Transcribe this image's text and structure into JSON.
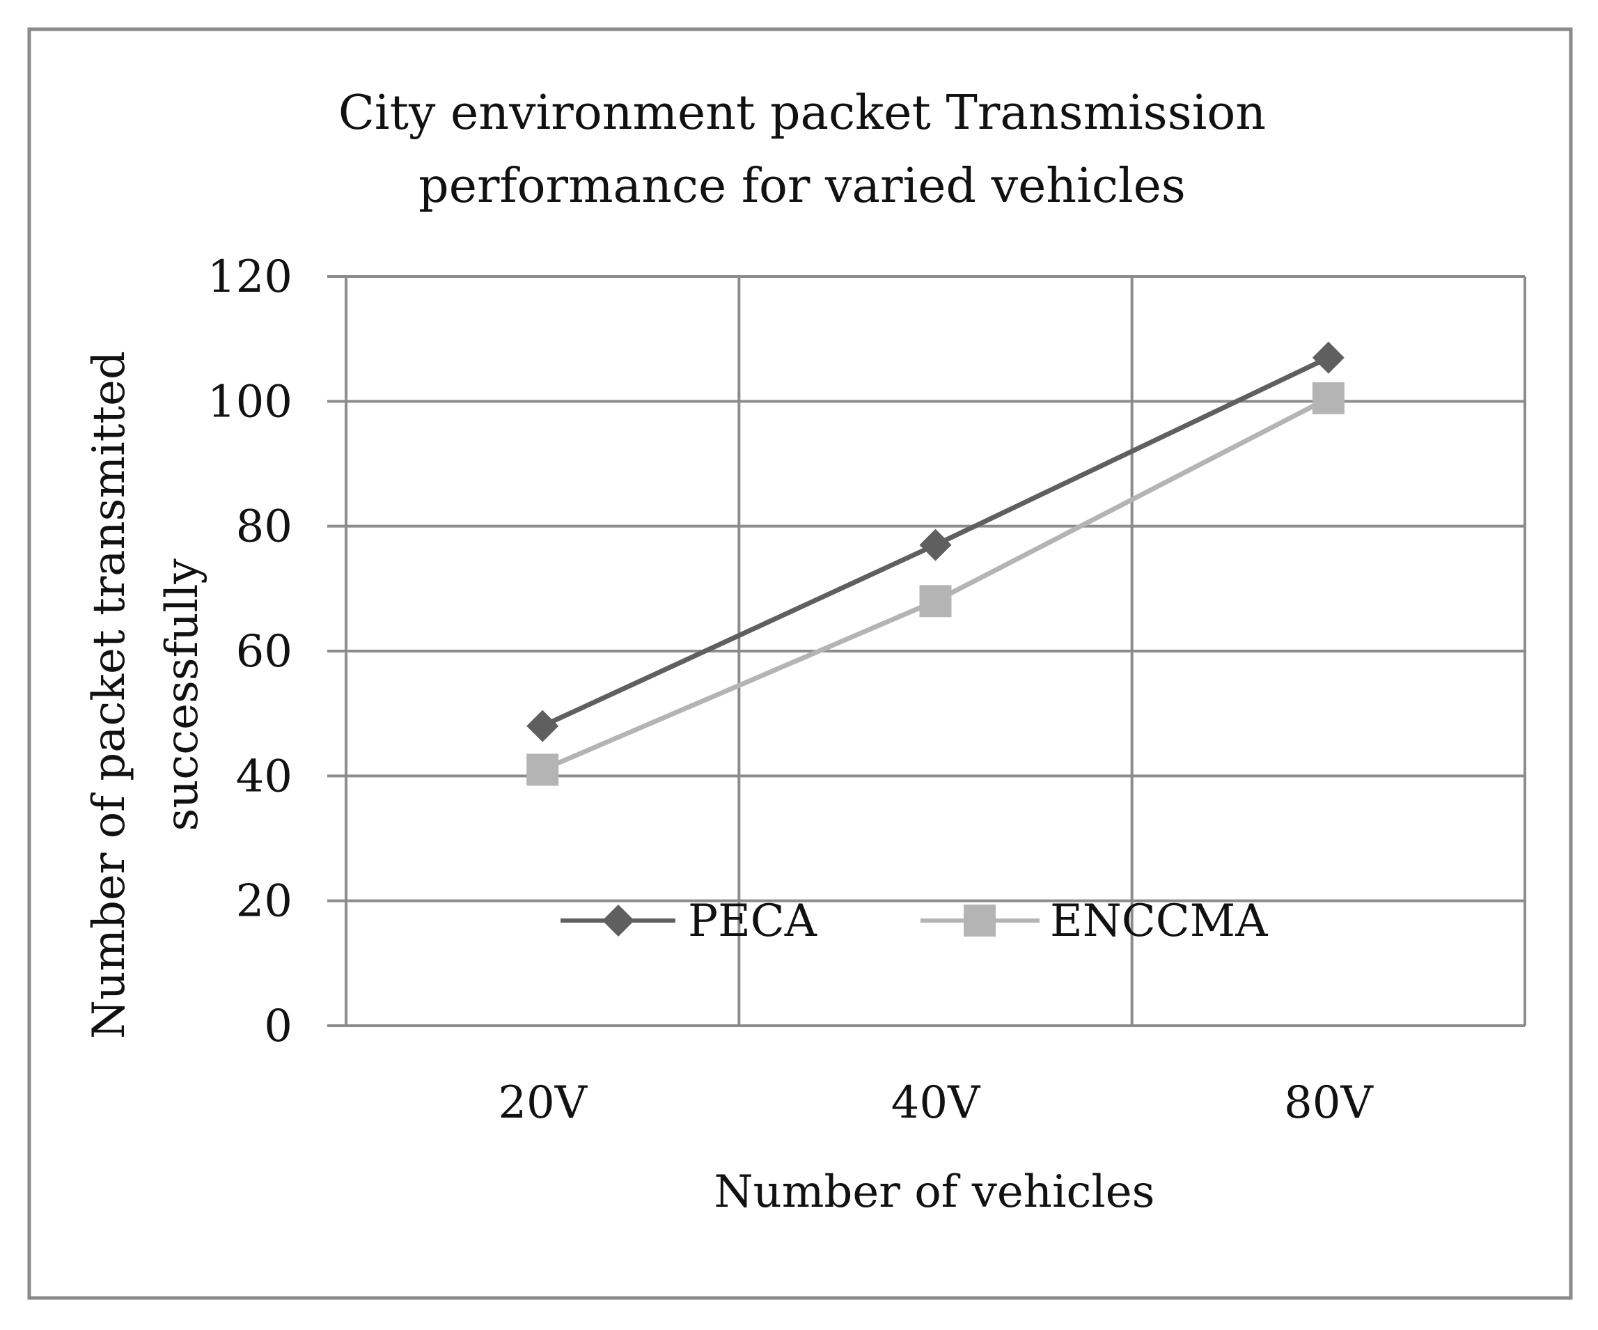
{
  "chart_data": {
    "type": "line",
    "title": [
      "City environment packet Transmission",
      "performance for varied vehicles"
    ],
    "xlabel": "Number of vehicles",
    "ylabel": [
      "Number of packet transmitted",
      "successfully"
    ],
    "categories": [
      "20V",
      "40V",
      "80V"
    ],
    "ylim": [
      0,
      120
    ],
    "yticks": [
      0,
      20,
      40,
      60,
      80,
      100,
      120
    ],
    "grid": true,
    "legend_position": "inside-bottom-center",
    "series": [
      {
        "name": "PECA",
        "values": [
          48,
          77,
          107
        ],
        "color": "#5f5f5f",
        "marker": "diamond"
      },
      {
        "name": "ENCCMA",
        "values": [
          41,
          68,
          100.5
        ],
        "color": "#b4b4b4",
        "marker": "square"
      }
    ]
  }
}
